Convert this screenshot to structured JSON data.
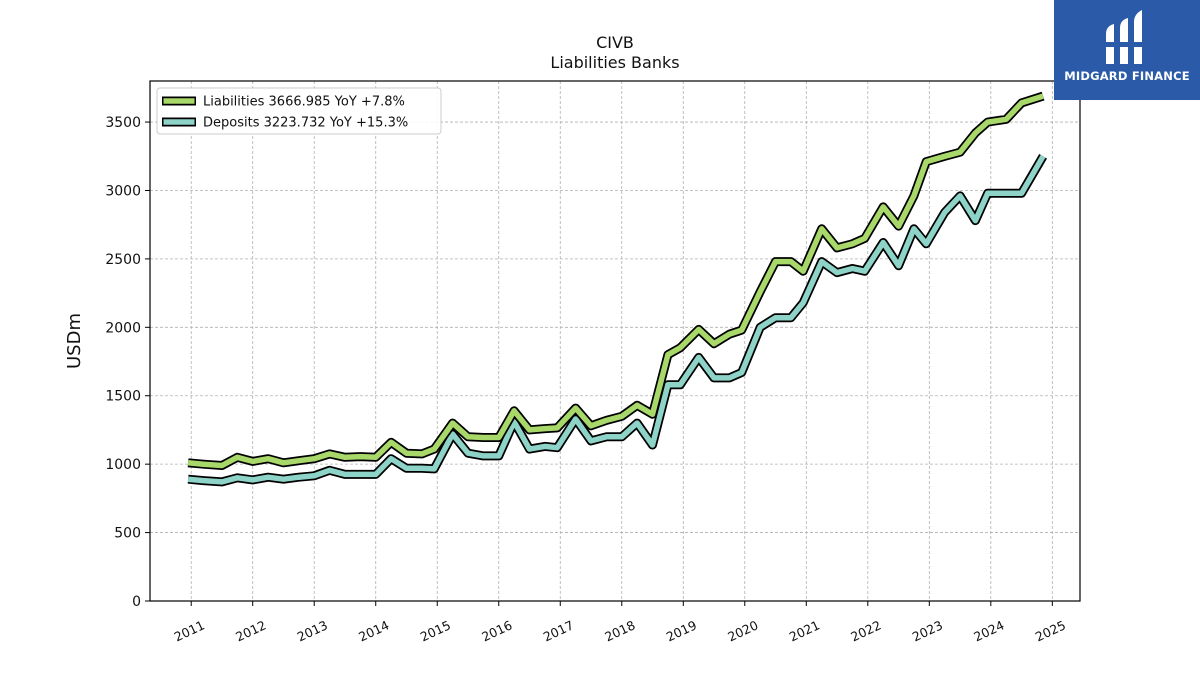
{
  "chart_data": {
    "type": "line",
    "title": "CIVB",
    "subtitle": "Liabilities Banks",
    "ylabel": "USDm",
    "xlabel": "",
    "xlim": [
      2010.33,
      2025.45
    ],
    "ylim": [
      0,
      3800
    ],
    "yticks": [
      0,
      500,
      1000,
      1500,
      2000,
      2500,
      3000,
      3500
    ],
    "xticks": [
      2011,
      2012,
      2013,
      2014,
      2015,
      2016,
      2017,
      2018,
      2019,
      2020,
      2021,
      2022,
      2023,
      2024,
      2025
    ],
    "grid": true,
    "legend_position": "top-left",
    "series": [
      {
        "name": "Liabilities",
        "legend_label": "Liabilities  3666.985 YoY +7.8%",
        "color": "#a8d86a",
        "x": [
          2010.95,
          2011.2,
          2011.5,
          2011.75,
          2012.0,
          2012.25,
          2012.5,
          2012.75,
          2013.0,
          2013.25,
          2013.5,
          2013.75,
          2014.0,
          2014.25,
          2014.5,
          2014.75,
          2014.95,
          2015.25,
          2015.5,
          2015.75,
          2016.0,
          2016.25,
          2016.5,
          2016.75,
          2016.95,
          2017.25,
          2017.5,
          2017.75,
          2018.0,
          2018.25,
          2018.5,
          2018.75,
          2018.95,
          2019.25,
          2019.5,
          2019.75,
          2019.95,
          2020.25,
          2020.5,
          2020.75,
          2020.95,
          2021.25,
          2021.5,
          2021.75,
          2021.95,
          2022.25,
          2022.5,
          2022.75,
          2022.95,
          2023.25,
          2023.5,
          2023.75,
          2023.95,
          2024.25,
          2024.5,
          2024.85
        ],
        "values": [
          1010,
          1000,
          990,
          1050,
          1020,
          1040,
          1010,
          1025,
          1040,
          1075,
          1050,
          1055,
          1050,
          1160,
          1080,
          1075,
          1110,
          1300,
          1200,
          1195,
          1195,
          1390,
          1250,
          1260,
          1265,
          1410,
          1280,
          1320,
          1350,
          1430,
          1365,
          1800,
          1850,
          1985,
          1880,
          1950,
          1980,
          2260,
          2480,
          2480,
          2410,
          2720,
          2580,
          2610,
          2650,
          2880,
          2740,
          2960,
          3210,
          3250,
          3280,
          3420,
          3500,
          3520,
          3640,
          3690
        ]
      },
      {
        "name": "Deposits",
        "legend_label": "Deposits  3223.732 YoY +15.3%",
        "color": "#8dd3c7",
        "x": [
          2010.95,
          2011.2,
          2011.5,
          2011.75,
          2012.0,
          2012.25,
          2012.5,
          2012.75,
          2013.0,
          2013.25,
          2013.5,
          2013.75,
          2014.0,
          2014.25,
          2014.5,
          2014.75,
          2014.95,
          2015.25,
          2015.5,
          2015.75,
          2016.0,
          2016.25,
          2016.5,
          2016.75,
          2016.95,
          2017.25,
          2017.5,
          2017.75,
          2018.0,
          2018.25,
          2018.5,
          2018.75,
          2018.95,
          2019.25,
          2019.5,
          2019.75,
          2019.95,
          2020.25,
          2020.5,
          2020.75,
          2020.95,
          2021.25,
          2021.5,
          2021.75,
          2021.95,
          2022.25,
          2022.5,
          2022.75,
          2022.95,
          2023.25,
          2023.5,
          2023.75,
          2023.95,
          2024.25,
          2024.5,
          2024.85
        ],
        "values": [
          890,
          880,
          870,
          900,
          885,
          905,
          890,
          905,
          915,
          955,
          925,
          925,
          925,
          1040,
          970,
          970,
          965,
          1220,
          1080,
          1060,
          1060,
          1310,
          1110,
          1130,
          1120,
          1330,
          1170,
          1200,
          1200,
          1300,
          1140,
          1580,
          1580,
          1780,
          1630,
          1630,
          1670,
          2000,
          2070,
          2070,
          2180,
          2480,
          2400,
          2430,
          2410,
          2620,
          2450,
          2720,
          2610,
          2840,
          2960,
          2780,
          2980,
          2980,
          2980,
          3250
        ]
      }
    ]
  },
  "logo": {
    "text": "MIDGARD FINANCE"
  }
}
